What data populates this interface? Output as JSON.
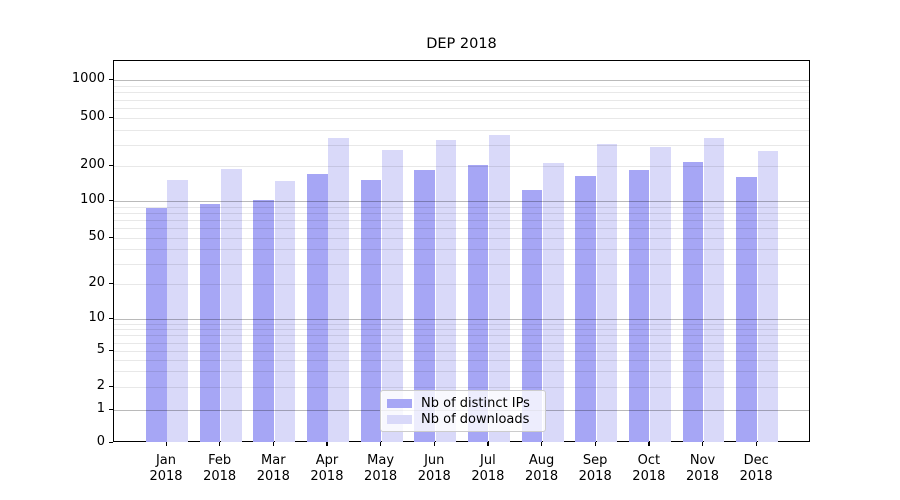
{
  "title": "DEP 2018",
  "legend": {
    "items": [
      {
        "label": "Nb of distinct IPs"
      },
      {
        "label": "Nb of downloads"
      }
    ]
  },
  "y_axis": {
    "tick_labels": [
      "0",
      "1",
      "2",
      "5",
      "10",
      "20",
      "50",
      "100",
      "200",
      "500",
      "1000"
    ]
  },
  "x_axis": {
    "tick_labels": [
      "Jan 2018",
      "Feb 2018",
      "Mar 2018",
      "Apr 2018",
      "May 2018",
      "Jun 2018",
      "Jul 2018",
      "Aug 2018",
      "Sep 2018",
      "Oct 2018",
      "Nov 2018",
      "Dec 2018"
    ]
  },
  "chart_data": {
    "type": "bar",
    "scale": "symlog",
    "title": "DEP 2018",
    "categories": [
      "Jan 2018",
      "Feb 2018",
      "Mar 2018",
      "Apr 2018",
      "May 2018",
      "Jun 2018",
      "Jul 2018",
      "Aug 2018",
      "Sep 2018",
      "Oct 2018",
      "Nov 2018",
      "Dec 2018"
    ],
    "series": [
      {
        "name": "Nb of distinct IPs",
        "color": "#a6a6f5",
        "values": [
          88,
          95,
          103,
          170,
          152,
          185,
          205,
          125,
          165,
          185,
          215,
          160
        ]
      },
      {
        "name": "Nb of downloads",
        "color": "#d9d9f9",
        "values": [
          151,
          190,
          149,
          340,
          270,
          330,
          360,
          210,
          305,
          290,
          340,
          265
        ]
      }
    ],
    "yticks": [
      0,
      1,
      2,
      5,
      10,
      20,
      50,
      100,
      200,
      500,
      1000
    ],
    "ylim": [
      0,
      1400
    ],
    "grid": true,
    "legend_position": "lower center"
  }
}
